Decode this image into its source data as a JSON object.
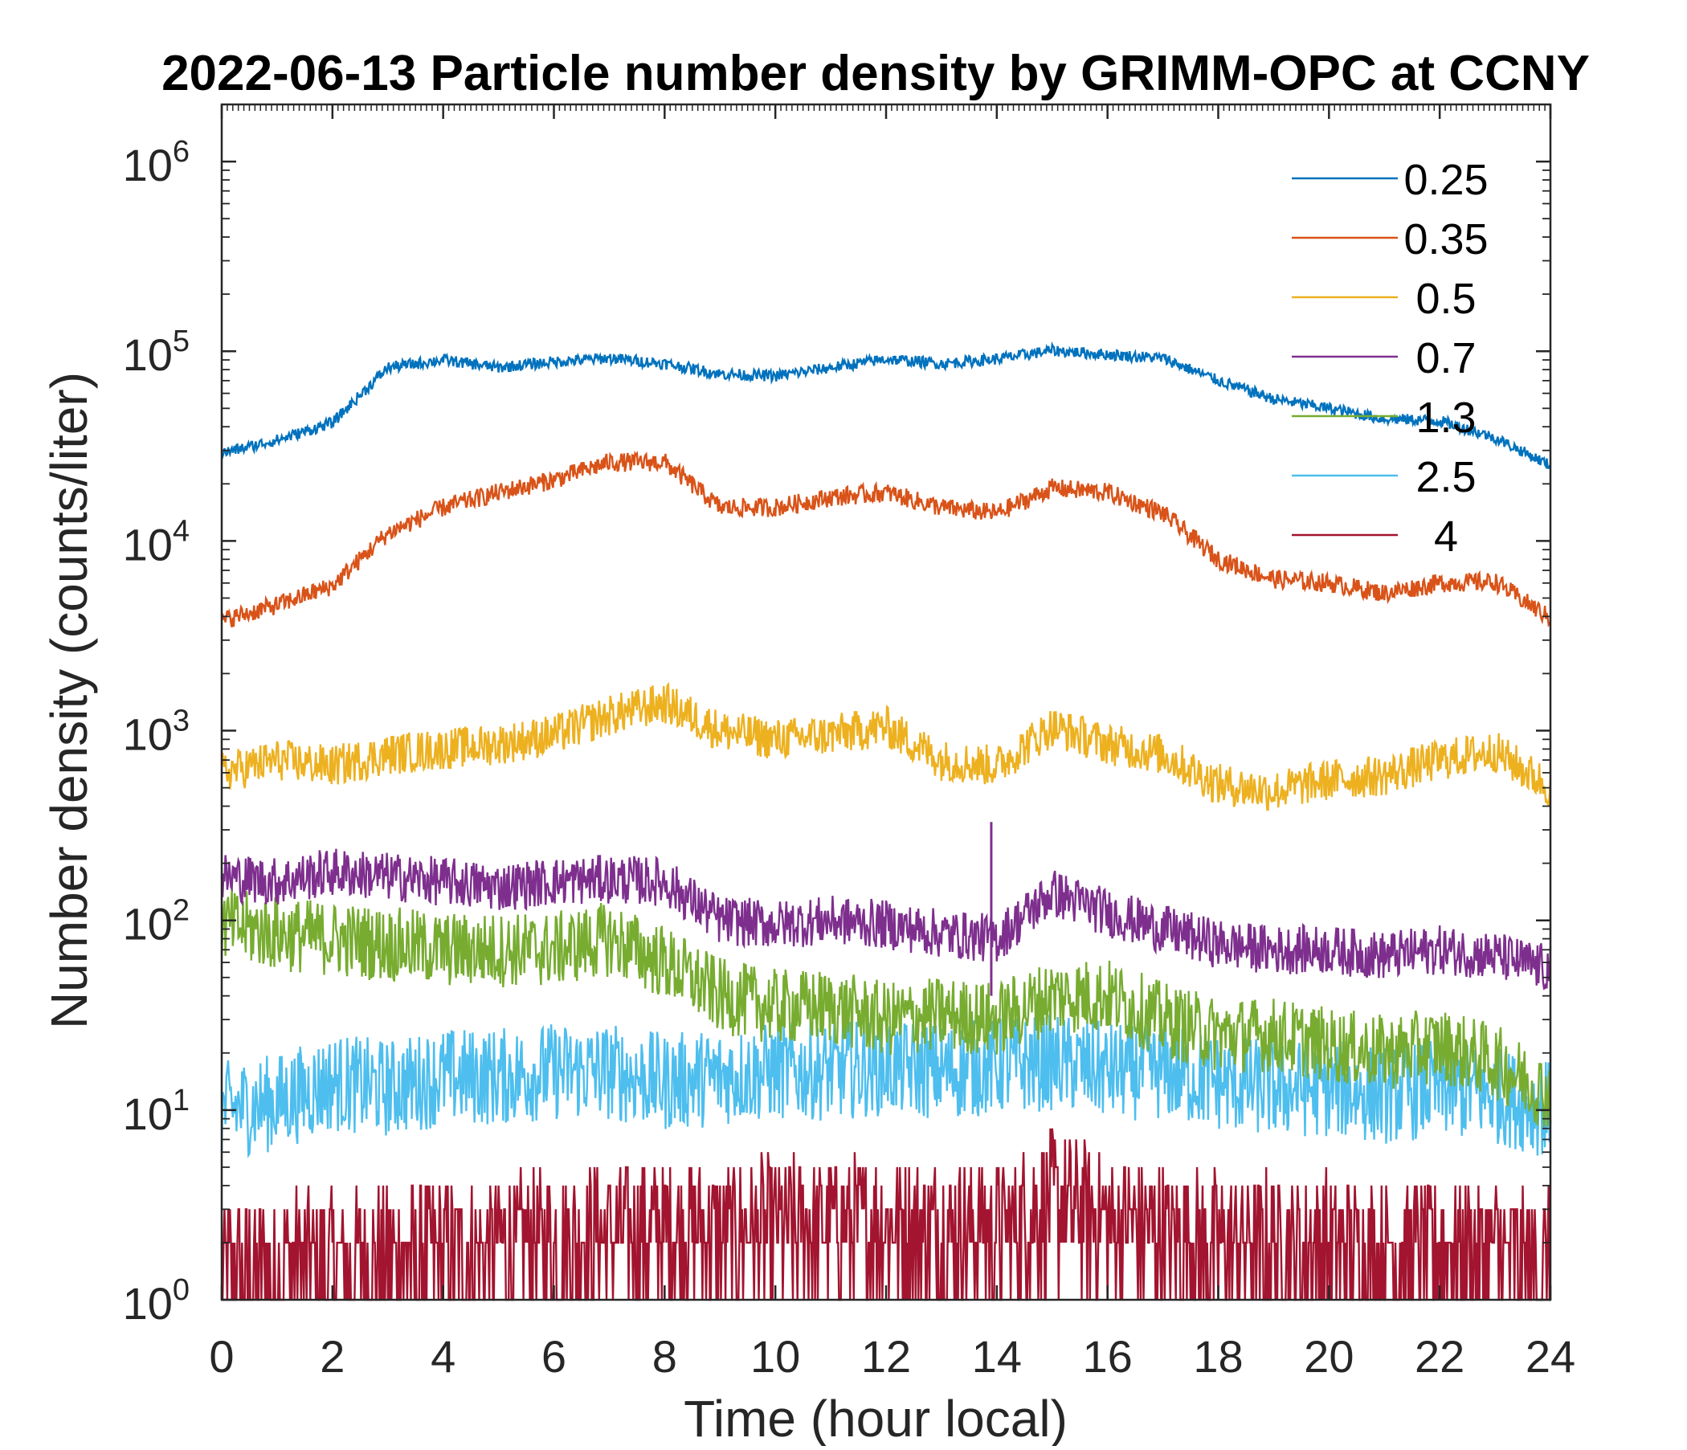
{
  "chart_data": {
    "type": "line",
    "title": "2022-06-13 Particle number density by GRIMM-OPC at CCNY",
    "xlabel": "Time (hour local)",
    "ylabel": "Number density (counts/liter)",
    "xlim": [
      0,
      24
    ],
    "ylim": [
      1,
      2000000
    ],
    "yscale": "log",
    "xticks": [
      0,
      2,
      4,
      6,
      8,
      10,
      12,
      14,
      16,
      18,
      20,
      22,
      24
    ],
    "xtick_labels": [
      "0",
      "2",
      "4",
      "6",
      "8",
      "10",
      "12",
      "14",
      "16",
      "18",
      "20",
      "22",
      "24"
    ],
    "yticks": [
      1,
      10,
      100,
      1000,
      10000,
      100000,
      1000000
    ],
    "ytick_labels": [
      {
        "base": "10",
        "exp": "0"
      },
      {
        "base": "10",
        "exp": "1"
      },
      {
        "base": "10",
        "exp": "2"
      },
      {
        "base": "10",
        "exp": "3"
      },
      {
        "base": "10",
        "exp": "4"
      },
      {
        "base": "10",
        "exp": "5"
      },
      {
        "base": "10",
        "exp": "6"
      }
    ],
    "legend_position": "top-right",
    "x": [
      0,
      1,
      2,
      3,
      4,
      5,
      6,
      7,
      8,
      9,
      10,
      11,
      12,
      13,
      14,
      15,
      16,
      17,
      18,
      19,
      20,
      21,
      22,
      23,
      24
    ],
    "series": [
      {
        "name": "0.25",
        "color": "#0072bd",
        "noise": 0.03,
        "values": [
          29000,
          34000,
          42000,
          82000,
          90000,
          82000,
          88000,
          92000,
          86000,
          76000,
          74000,
          82000,
          91000,
          86000,
          91000,
          101000,
          96000,
          92000,
          70000,
          56000,
          50000,
          44000,
          43000,
          35000,
          25000
        ]
      },
      {
        "name": "0.35",
        "color": "#d95319",
        "noise": 0.05,
        "values": [
          3800,
          4600,
          5800,
          11000,
          15000,
          18000,
          21000,
          26000,
          26000,
          15000,
          15000,
          17000,
          18000,
          15000,
          14000,
          19000,
          18000,
          14000,
          8000,
          6300,
          6000,
          5300,
          6000,
          6100,
          3900
        ]
      },
      {
        "name": "0.5",
        "color": "#edb120",
        "noise": 0.11,
        "values": [
          600,
          700,
          650,
          750,
          800,
          850,
          950,
          1200,
          1400,
          1000,
          900,
          950,
          1050,
          700,
          650,
          1050,
          850,
          750,
          520,
          480,
          550,
          580,
          700,
          780,
          500
        ]
      },
      {
        "name": "0.7",
        "color": "#7e2f8e",
        "noise": 0.13,
        "values": [
          170,
          160,
          180,
          170,
          160,
          150,
          160,
          165,
          160,
          100,
          95,
          100,
          95,
          85,
          80,
          140,
          110,
          90,
          75,
          70,
          70,
          65,
          70,
          65,
          55
        ]
      },
      {
        "name": "1.3",
        "color": "#77ac30",
        "noise": 0.2,
        "values": [
          95,
          85,
          80,
          75,
          70,
          70,
          70,
          80,
          60,
          40,
          35,
          35,
          30,
          32,
          30,
          40,
          40,
          30,
          25,
          25,
          22,
          20,
          22,
          18,
          12
        ]
      },
      {
        "name": "2.5",
        "color": "#4dbeee",
        "noise": 0.26,
        "values": [
          10,
          11,
          14,
          13,
          15,
          15,
          16,
          16,
          14,
          15,
          16,
          16,
          17,
          16,
          17,
          18,
          16,
          16,
          14,
          13,
          13,
          12,
          13,
          12,
          10
        ]
      },
      {
        "name": "4",
        "color": "#a2142f",
        "noise": 0.38,
        "values": [
          1.4,
          1.6,
          1.6,
          1.7,
          1.8,
          1.9,
          2.0,
          2.3,
          2.4,
          2.2,
          2.4,
          2.4,
          2.5,
          2.4,
          2.3,
          3.3,
          2.6,
          2.2,
          2.0,
          2.0,
          2.0,
          1.8,
          1.9,
          1.8,
          1.5
        ]
      }
    ],
    "annotations": [
      {
        "x": 13.9,
        "series": "0.7",
        "value": 330,
        "label": "spike"
      }
    ]
  }
}
